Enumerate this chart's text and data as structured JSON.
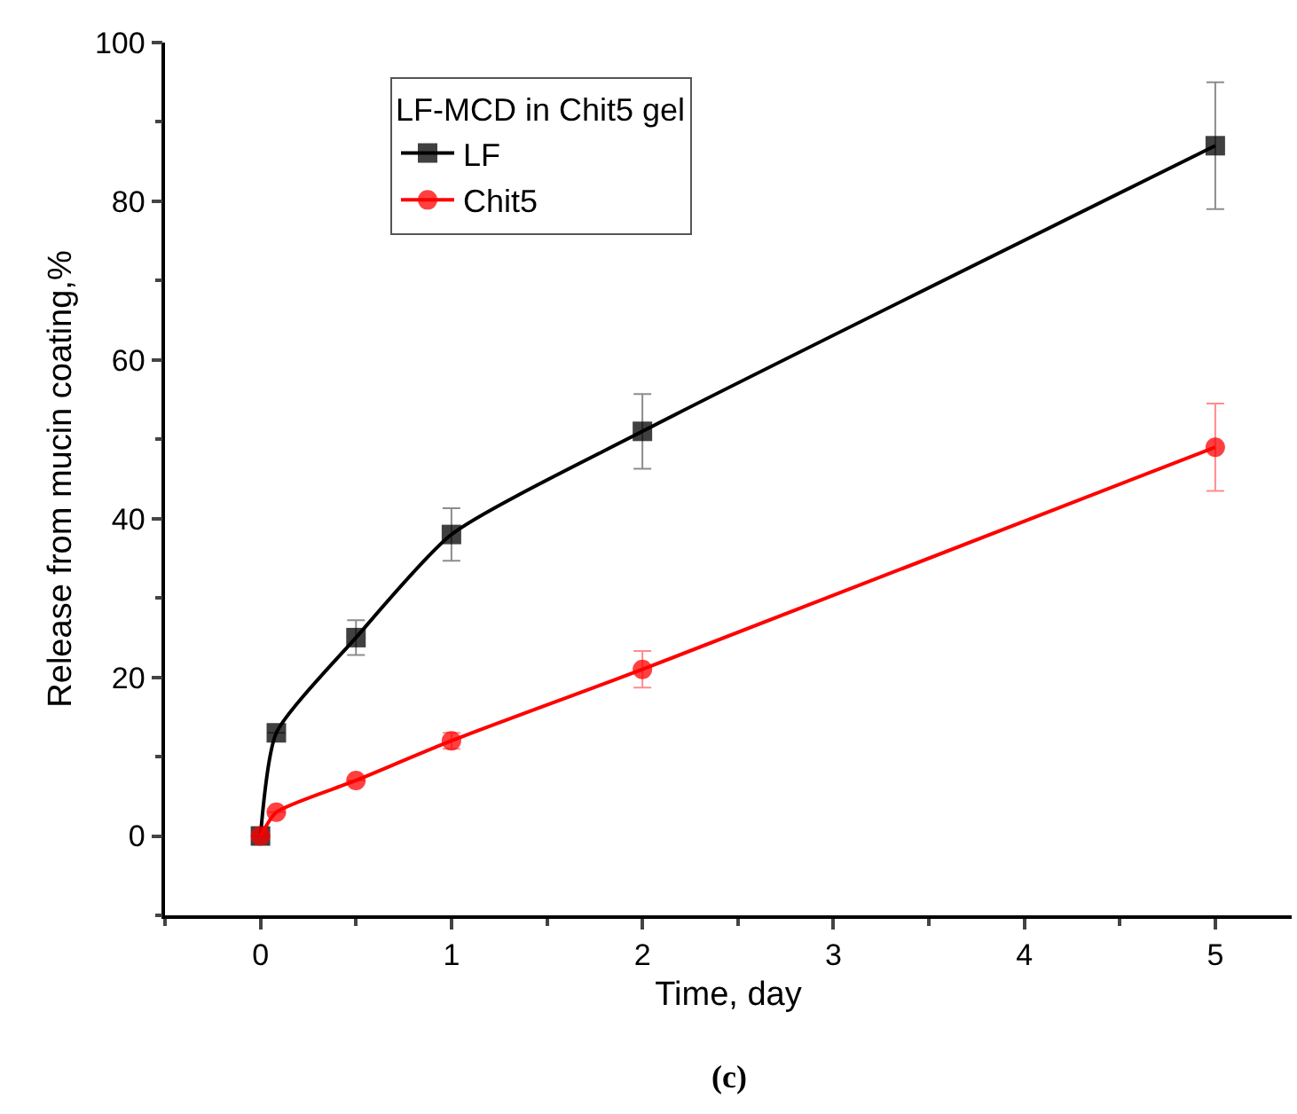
{
  "chart_data": {
    "type": "line",
    "xlabel": "Time, day",
    "ylabel": "Release from mucin coating,%",
    "legend_title": "LF-MCD in Chit5 gel",
    "xlim": [
      -0.5,
      5.4
    ],
    "xticks": [
      0,
      1,
      2,
      3,
      4,
      5
    ],
    "ylim": [
      -10,
      100
    ],
    "yticks": [
      0,
      20,
      40,
      60,
      80,
      100
    ],
    "grid": false,
    "legend": "top left",
    "line_style": "solid",
    "series": [
      {
        "name": "LF",
        "color": "#000000",
        "marker": "square",
        "x": [
          0,
          0.083,
          0.5,
          1,
          2,
          5
        ],
        "values": [
          0,
          13,
          25,
          38,
          51,
          87
        ],
        "errors": [
          null,
          null,
          2.2,
          3.3,
          4.7,
          8
        ]
      },
      {
        "name": "Chit5",
        "color": "#ff0000",
        "marker": "circle",
        "x": [
          0,
          0.083,
          0.5,
          1,
          2,
          5
        ],
        "values": [
          0,
          3,
          7,
          12,
          21,
          49
        ],
        "errors": [
          null,
          null,
          null,
          1,
          2.3,
          5.5
        ]
      }
    ],
    "annotations": [
      "(c)"
    ]
  }
}
